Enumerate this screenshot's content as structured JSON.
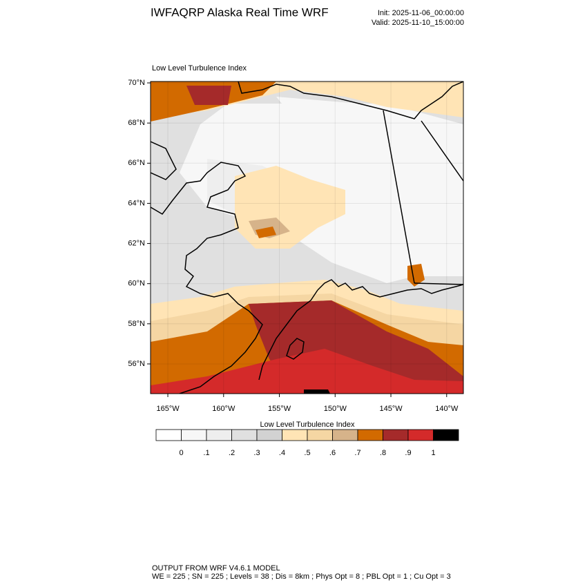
{
  "chart_data": {
    "type": "map",
    "title": "IWFAQRP Alaska Real Time WRF",
    "init": "Init: 2025-11-06_00:00:00",
    "valid": "Valid: 2025-11-10_15:00:00",
    "subtitle": "Low Level Turbulence Index",
    "xlim": [
      -166.55,
      -138.5
    ],
    "ylim": [
      54.52,
      70.07
    ],
    "xticks": [
      {
        "value": -165,
        "label": "165°W"
      },
      {
        "value": -160,
        "label": "160°W"
      },
      {
        "value": -155,
        "label": "155°W"
      },
      {
        "value": -150,
        "label": "150°W"
      },
      {
        "value": -145,
        "label": "145°W"
      },
      {
        "value": -140,
        "label": "140°W"
      }
    ],
    "yticks": [
      {
        "value": 56,
        "label": "56°N"
      },
      {
        "value": 58,
        "label": "58°N"
      },
      {
        "value": 60,
        "label": "60°N"
      },
      {
        "value": 62,
        "label": "62°N"
      },
      {
        "value": 64,
        "label": "64°N"
      },
      {
        "value": 66,
        "label": "66°N"
      },
      {
        "value": 68,
        "label": "68°N"
      },
      {
        "value": 70,
        "label": "70°N"
      }
    ],
    "colorbar": {
      "title": "Low Level Turbulence Index",
      "levels": [
        {
          "value": 0,
          "label": "0"
        },
        {
          "value": 0.1,
          "label": ".1"
        },
        {
          "value": 0.2,
          "label": ".2"
        },
        {
          "value": 0.3,
          "label": ".3"
        },
        {
          "value": 0.4,
          "label": ".4"
        },
        {
          "value": 0.5,
          "label": ".5"
        },
        {
          "value": 0.6,
          "label": ".6"
        },
        {
          "value": 0.7,
          "label": ".7"
        },
        {
          "value": 0.8,
          "label": ".8"
        },
        {
          "value": 0.9,
          "label": ".9"
        },
        {
          "value": 1,
          "label": "1"
        }
      ],
      "colors": [
        "#ffffff",
        "#f7f7f7",
        "#eeeeee",
        "#e0e0e0",
        "#d2d2d2",
        "#ffe4b5",
        "#f5d6a3",
        "#d6b38a",
        "#d26a00",
        "#a52a2a",
        "#d42a2a",
        "#000000"
      ]
    },
    "footer": [
      "OUTPUT FROM WRF V4.6.1 MODEL",
      "WE = 225 ; SN = 225 ; Levels = 38 ; Dis = 8km ; Phys Opt = 8 ; PBL Opt = 1 ; Cu Opt = 3"
    ]
  }
}
